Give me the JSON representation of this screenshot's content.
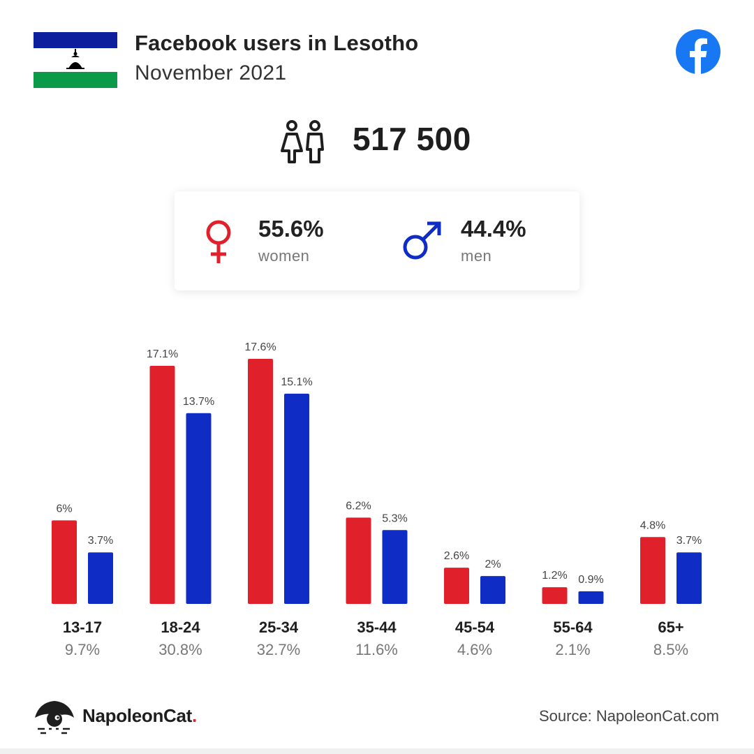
{
  "header": {
    "title": "Facebook users in Lesotho",
    "subtitle": "November 2021"
  },
  "total_users": "517 500",
  "gender": {
    "women": {
      "pct": "55.6%",
      "label": "women"
    },
    "men": {
      "pct": "44.4%",
      "label": "men"
    }
  },
  "colors": {
    "women": "#e0202a",
    "men": "#0f2cc4",
    "facebook": "#1877f2",
    "flag_blue": "#0d1f9c",
    "flag_green": "#0b9a48"
  },
  "icons": [
    "lesotho-flag-icon",
    "facebook-icon",
    "people-icon",
    "female-symbol-icon",
    "male-symbol-icon",
    "napoleoncat-logo-icon"
  ],
  "chart_data": {
    "type": "bar",
    "categories": [
      "13-17",
      "18-24",
      "25-34",
      "35-44",
      "45-54",
      "55-64",
      "65+"
    ],
    "category_totals": [
      "9.7%",
      "30.8%",
      "32.7%",
      "11.6%",
      "4.6%",
      "2.1%",
      "8.5%"
    ],
    "series": [
      {
        "name": "women",
        "values": [
          6,
          17.1,
          17.6,
          6.2,
          2.6,
          1.2,
          4.8
        ],
        "labels": [
          "6%",
          "17.1%",
          "17.6%",
          "6.2%",
          "2.6%",
          "1.2%",
          "4.8%"
        ]
      },
      {
        "name": "men",
        "values": [
          3.7,
          13.7,
          15.1,
          5.3,
          2,
          0.9,
          3.7
        ],
        "labels": [
          "3.7%",
          "13.7%",
          "15.1%",
          "5.3%",
          "2%",
          "0.9%",
          "3.7%"
        ]
      }
    ],
    "ylim": [
      0,
      17.6
    ],
    "grid": false
  },
  "footer": {
    "brand": "NapoleonCat",
    "brand_dot": ".",
    "source": "Source: NapoleonCat.com"
  }
}
